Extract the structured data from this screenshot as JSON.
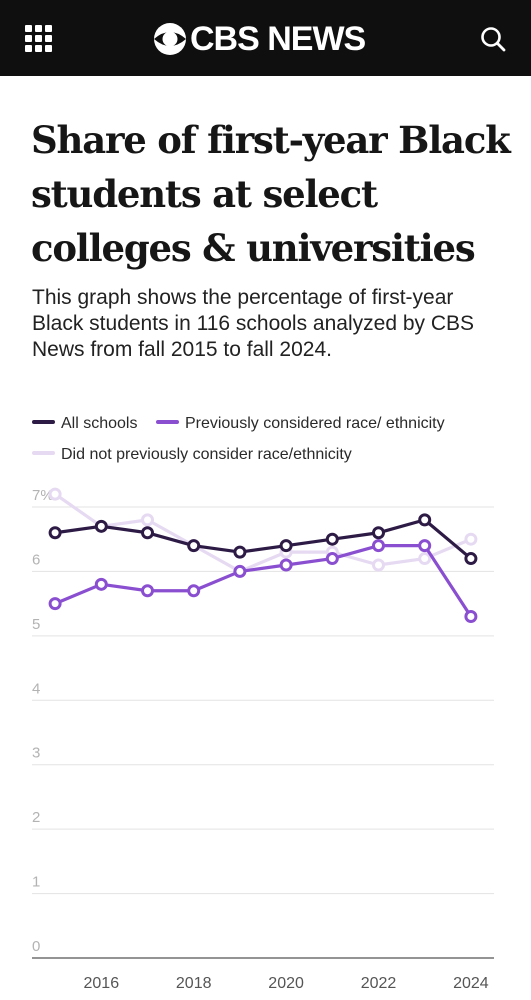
{
  "header": {
    "logo_text": "CBS NEWS",
    "menu_icon": "grid-menu-icon",
    "logo_icon": "cbs-eye-icon",
    "search_icon": "search-icon",
    "background": "#0f0f0f"
  },
  "article": {
    "title": "Share of first-year Black students at select colleges & universities",
    "subtitle": "This graph shows the percentage of first-year Black students in 116 schools analyzed by CBS News from fall 2015 to fall 2024."
  },
  "chart_data": {
    "type": "line",
    "x": [
      2015,
      2016,
      2017,
      2018,
      2019,
      2020,
      2021,
      2022,
      2023,
      2024
    ],
    "xticks": [
      "2016",
      "2018",
      "2020",
      "2022",
      "2024"
    ],
    "xtick_values": [
      2016,
      2018,
      2020,
      2022,
      2024
    ],
    "yticks": [
      "0",
      "1",
      "2",
      "3",
      "4",
      "5",
      "6",
      "7%"
    ],
    "ytick_values": [
      0,
      1,
      2,
      3,
      4,
      5,
      6,
      7
    ],
    "ylim": [
      0,
      7
    ],
    "xlim": [
      2014.5,
      2024.5
    ],
    "grid": true,
    "legend_position": "top",
    "series": [
      {
        "name": "Did not previously consider race/ethnicity",
        "color": "#e6daf2",
        "values": [
          7.2,
          6.7,
          6.8,
          6.4,
          6.0,
          6.3,
          6.3,
          6.1,
          6.2,
          6.5
        ]
      },
      {
        "name": "Previously considered race/ ethnicity",
        "color": "#8a4fd0",
        "values": [
          5.5,
          5.8,
          5.7,
          5.7,
          6.0,
          6.1,
          6.2,
          6.4,
          6.4,
          5.3
        ]
      },
      {
        "name": "All schools",
        "color": "#2d1b46",
        "values": [
          6.6,
          6.7,
          6.6,
          6.4,
          6.3,
          6.4,
          6.5,
          6.6,
          6.8,
          6.2
        ]
      }
    ]
  }
}
